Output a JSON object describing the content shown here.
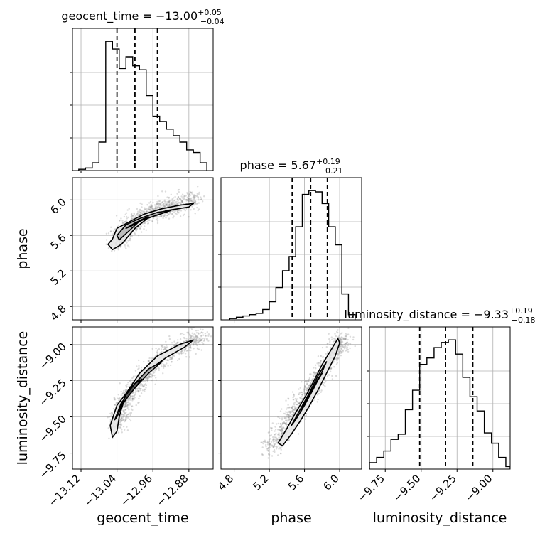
{
  "parameters": [
    "geocent_time",
    "phase",
    "luminosity_distance"
  ],
  "chart_data": {
    "type": "corner",
    "grid": true,
    "colors": {
      "line": "#000000",
      "grid": "#b0b0b0",
      "scatter": "#808080",
      "axes": "#000000"
    },
    "axis_labels": [
      "geocent_time",
      "phase",
      "luminosity_distance"
    ],
    "ranges": {
      "geocent_time": [
        -13.139,
        -12.826
      ],
      "phase": [
        4.65,
        6.25
      ],
      "luminosity_distance": [
        -9.86,
        -8.88
      ]
    },
    "ticks": {
      "geocent_time": [
        -13.12,
        -13.04,
        -12.96,
        -12.88
      ],
      "phase": [
        4.8,
        5.2,
        5.6,
        6.0
      ],
      "luminosity_distance": [
        -9.75,
        -9.5,
        -9.25,
        -9.0
      ]
    },
    "tick_labels": {
      "geocent_time": [
        "−13.12",
        "−13.04",
        "−12.96",
        "−12.88"
      ],
      "phase": [
        "4.8",
        "5.2",
        "5.6",
        "6.0"
      ],
      "luminosity_distance": [
        "−9.75",
        "−9.50",
        "−9.25",
        "−9.00"
      ]
    },
    "titles": {
      "geocent_time": {
        "name": "geocent_time",
        "median": "−13.00",
        "plus": "+0.05",
        "minus": "−0.04"
      },
      "phase": {
        "name": "phase",
        "median": "5.67",
        "plus": "+0.19",
        "minus": "−0.21"
      },
      "luminosity_distance": {
        "name": "luminosity_distance",
        "median": "−9.33",
        "plus": "+0.19",
        "minus": "−0.18"
      }
    },
    "quantiles": {
      "geocent_time": [
        -13.04,
        -13.0,
        -12.95
      ],
      "phase": [
        5.46,
        5.67,
        5.86
      ],
      "luminosity_distance": [
        -9.51,
        -9.33,
        -9.14
      ]
    },
    "histograms": {
      "geocent_time": {
        "edges": [
          -13.125,
          -13.11,
          -13.095,
          -13.08,
          -13.065,
          -13.05,
          -13.035,
          -13.02,
          -13.005,
          -12.99,
          -12.975,
          -12.96,
          -12.945,
          -12.93,
          -12.915,
          -12.9,
          -12.885,
          -12.87,
          -12.855,
          -12.84
        ],
        "counts": [
          0.01,
          0.02,
          0.06,
          0.22,
          1.0,
          0.94,
          0.79,
          0.88,
          0.81,
          0.78,
          0.58,
          0.42,
          0.38,
          0.32,
          0.27,
          0.22,
          0.16,
          0.14,
          0.06
        ]
      },
      "phase": {
        "edges": [
          4.75,
          4.825,
          4.9,
          4.975,
          5.05,
          5.125,
          5.2,
          5.275,
          5.35,
          5.425,
          5.5,
          5.575,
          5.65,
          5.725,
          5.8,
          5.875,
          5.95,
          6.025,
          6.1,
          6.175
        ],
        "counts": [
          0.01,
          0.02,
          0.03,
          0.04,
          0.05,
          0.08,
          0.14,
          0.25,
          0.38,
          0.49,
          0.72,
          0.97,
          1.0,
          0.99,
          0.9,
          0.72,
          0.58,
          0.2,
          0.04
        ]
      },
      "luminosity_distance": {
        "edges": [
          -9.86,
          -9.81,
          -9.76,
          -9.71,
          -9.66,
          -9.61,
          -9.56,
          -9.51,
          -9.46,
          -9.41,
          -9.36,
          -9.31,
          -9.26,
          -9.21,
          -9.16,
          -9.11,
          -9.06,
          -9.01,
          -8.96,
          -8.91,
          -8.88
        ],
        "counts": [
          0.05,
          0.09,
          0.14,
          0.23,
          0.27,
          0.46,
          0.61,
          0.81,
          0.86,
          0.94,
          0.98,
          1.0,
          0.89,
          0.71,
          0.56,
          0.45,
          0.28,
          0.2,
          0.09,
          0.02
        ]
      }
    },
    "joint": {
      "phase_vs_geocent_time": {
        "trend": [
          [
            -13.04,
            5.52
          ],
          [
            -13.03,
            5.62
          ],
          [
            -13.01,
            5.72
          ],
          [
            -12.99,
            5.8
          ],
          [
            -12.96,
            5.86
          ],
          [
            -12.93,
            5.91
          ],
          [
            -12.9,
            5.96
          ],
          [
            -12.86,
            6.02
          ]
        ],
        "contours": [
          [
            [
              -13.05,
              5.56
            ],
            [
              -13.04,
              5.68
            ],
            [
              -13.01,
              5.76
            ],
            [
              -12.98,
              5.84
            ],
            [
              -12.94,
              5.9
            ],
            [
              -12.9,
              5.94
            ],
            [
              -12.87,
              5.96
            ],
            [
              -12.88,
              5.92
            ],
            [
              -12.93,
              5.88
            ],
            [
              -12.97,
              5.8
            ],
            [
              -13.0,
              5.68
            ],
            [
              -13.03,
              5.5
            ],
            [
              -13.05,
              5.44
            ],
            [
              -13.06,
              5.5
            ]
          ],
          [
            [
              -13.04,
              5.6
            ],
            [
              -13.02,
              5.72
            ],
            [
              -12.99,
              5.79
            ],
            [
              -12.95,
              5.86
            ],
            [
              -12.92,
              5.88
            ],
            [
              -12.95,
              5.83
            ],
            [
              -12.99,
              5.76
            ],
            [
              -13.02,
              5.62
            ],
            [
              -13.035,
              5.55
            ]
          ],
          [
            [
              -13.02,
              5.68
            ],
            [
              -13.0,
              5.74
            ],
            [
              -12.98,
              5.79
            ],
            [
              -12.97,
              5.81
            ],
            [
              -12.985,
              5.77
            ],
            [
              -13.01,
              5.7
            ]
          ]
        ]
      },
      "luminosity_distance_vs_geocent_time": {
        "trend": [
          [
            -13.04,
            -9.58
          ],
          [
            -13.03,
            -9.45
          ],
          [
            -13.01,
            -9.33
          ],
          [
            -12.98,
            -9.22
          ],
          [
            -12.95,
            -9.12
          ],
          [
            -12.92,
            -9.05
          ],
          [
            -12.88,
            -8.99
          ],
          [
            -12.85,
            -8.94
          ]
        ],
        "contours": [
          [
            [
              -13.055,
              -9.56
            ],
            [
              -13.04,
              -9.42
            ],
            [
              -13.01,
              -9.3
            ],
            [
              -12.97,
              -9.18
            ],
            [
              -12.93,
              -9.09
            ],
            [
              -12.89,
              -9.02
            ],
            [
              -12.87,
              -8.97
            ],
            [
              -12.9,
              -9.0
            ],
            [
              -12.95,
              -9.08
            ],
            [
              -12.99,
              -9.2
            ],
            [
              -13.02,
              -9.34
            ],
            [
              -13.035,
              -9.5
            ],
            [
              -13.04,
              -9.6
            ],
            [
              -13.05,
              -9.64
            ]
          ],
          [
            [
              -13.045,
              -9.52
            ],
            [
              -13.03,
              -9.4
            ],
            [
              -13.0,
              -9.3
            ],
            [
              -12.97,
              -9.2
            ],
            [
              -12.94,
              -9.12
            ],
            [
              -12.97,
              -9.17
            ],
            [
              -13.0,
              -9.27
            ],
            [
              -13.025,
              -9.4
            ],
            [
              -13.04,
              -9.5
            ]
          ],
          [
            [
              -13.035,
              -9.45
            ],
            [
              -13.02,
              -9.38
            ],
            [
              -13.0,
              -9.3
            ],
            [
              -12.985,
              -9.24
            ],
            [
              -13.0,
              -9.27
            ],
            [
              -13.02,
              -9.35
            ]
          ]
        ]
      },
      "luminosity_distance_vs_phase": {
        "trend": [
          [
            5.2,
            -9.72
          ],
          [
            5.3,
            -9.64
          ],
          [
            5.4,
            -9.54
          ],
          [
            5.5,
            -9.45
          ],
          [
            5.6,
            -9.37
          ],
          [
            5.7,
            -9.28
          ],
          [
            5.8,
            -9.19
          ],
          [
            5.9,
            -9.1
          ],
          [
            6.0,
            -9.0
          ],
          [
            6.05,
            -8.95
          ]
        ],
        "contours": [
          [
            [
              5.3,
              -9.68
            ],
            [
              5.4,
              -9.58
            ],
            [
              5.5,
              -9.47
            ],
            [
              5.6,
              -9.37
            ],
            [
              5.7,
              -9.26
            ],
            [
              5.8,
              -9.14
            ],
            [
              5.9,
              -9.04
            ],
            [
              5.98,
              -8.96
            ],
            [
              6.0,
              -8.99
            ],
            [
              5.95,
              -9.08
            ],
            [
              5.85,
              -9.2
            ],
            [
              5.75,
              -9.32
            ],
            [
              5.65,
              -9.43
            ],
            [
              5.55,
              -9.53
            ],
            [
              5.45,
              -9.62
            ],
            [
              5.35,
              -9.7
            ]
          ],
          [
            [
              5.45,
              -9.56
            ],
            [
              5.55,
              -9.45
            ],
            [
              5.65,
              -9.34
            ],
            [
              5.75,
              -9.22
            ],
            [
              5.85,
              -9.12
            ],
            [
              5.8,
              -9.19
            ],
            [
              5.7,
              -9.31
            ],
            [
              5.6,
              -9.42
            ],
            [
              5.5,
              -9.52
            ]
          ],
          [
            [
              5.55,
              -9.47
            ],
            [
              5.63,
              -9.37
            ],
            [
              5.72,
              -9.28
            ],
            [
              5.8,
              -9.2
            ],
            [
              5.75,
              -9.24
            ],
            [
              5.67,
              -9.33
            ],
            [
              5.6,
              -9.42
            ]
          ]
        ]
      }
    }
  }
}
